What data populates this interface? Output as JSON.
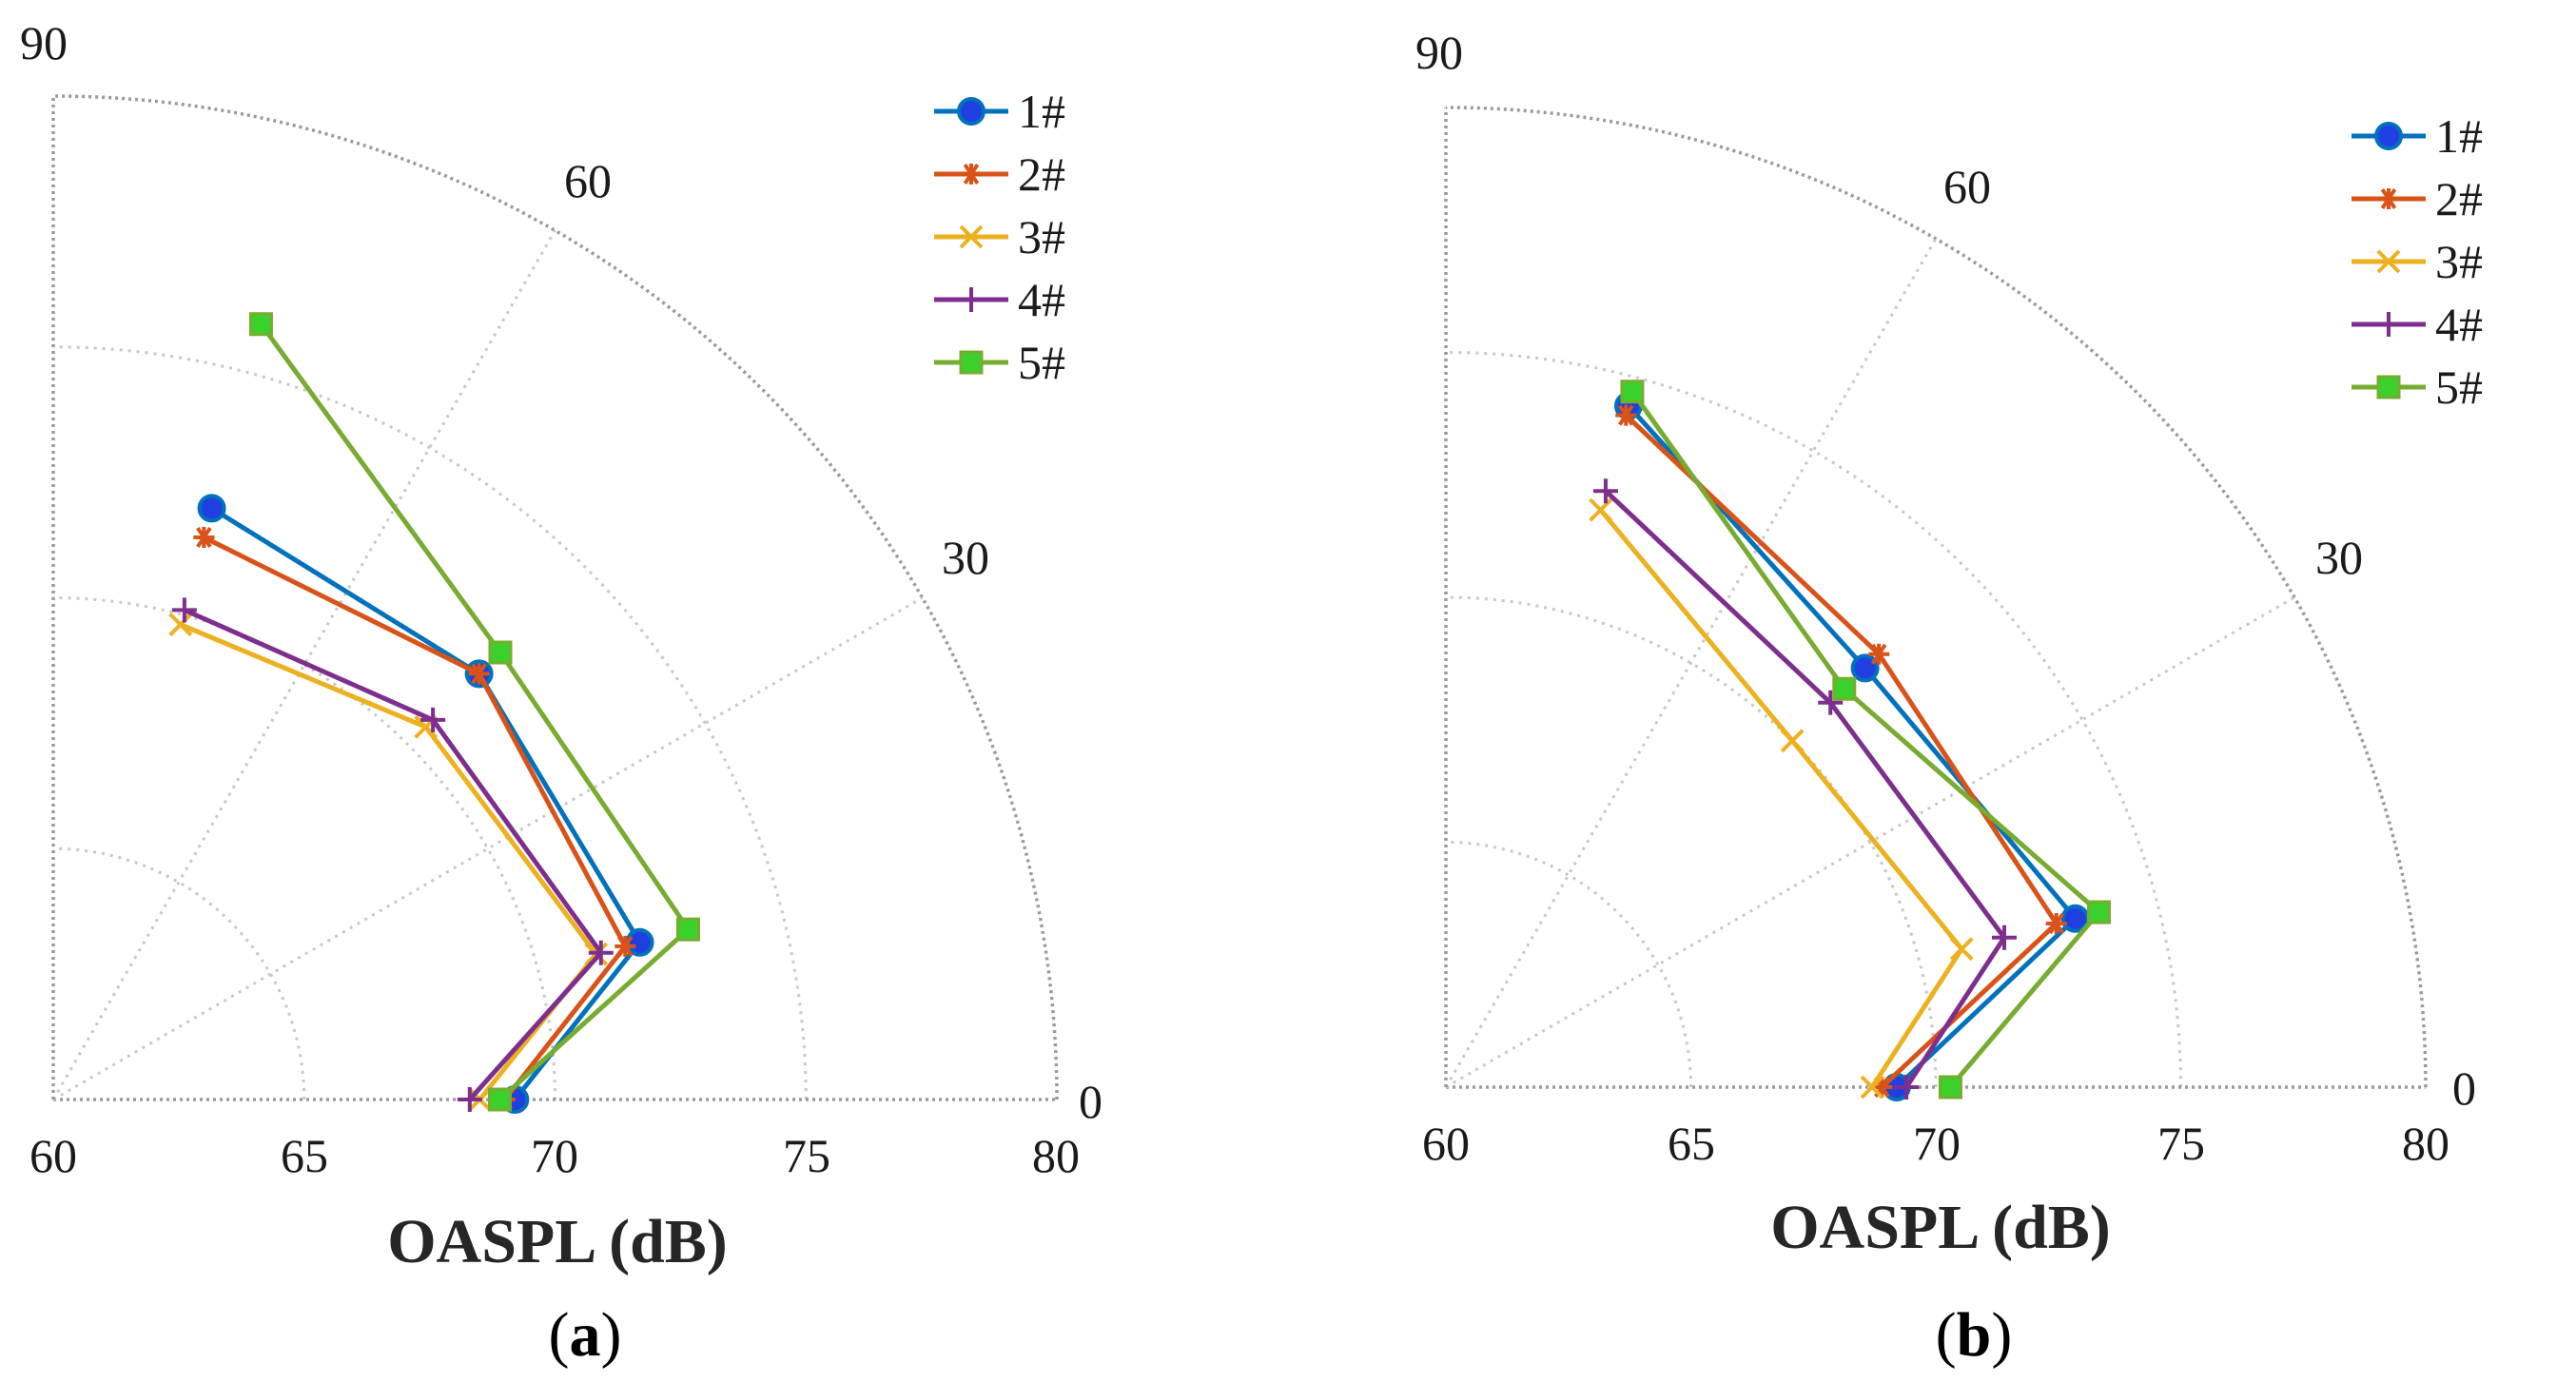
{
  "chart_data": [
    {
      "type": "polar-line",
      "panel_label": "a",
      "xlabel": "OASPL (dB)",
      "radial_range": [
        60,
        80
      ],
      "radial_ticks": [
        60,
        65,
        70,
        75,
        80
      ],
      "radial_tick_labels": [
        "60",
        "65",
        "70",
        "75",
        "80"
      ],
      "angular_range_deg": [
        0,
        90
      ],
      "angular_ticks": [
        0,
        30,
        60,
        90
      ],
      "angular_tick_labels": [
        "0",
        "30",
        "60",
        "90"
      ],
      "grid": true,
      "legend_position": "top-right",
      "series": [
        {
          "name": "1#",
          "color": "#0072BD",
          "marker": "circle",
          "points": [
            [
              0,
              69.2
            ],
            [
              15,
              72.1
            ],
            [
              45,
              72.0
            ],
            [
              75,
              72.2
            ]
          ]
        },
        {
          "name": "2#",
          "color": "#D95319",
          "marker": "asterisk",
          "points": [
            [
              0,
              69.0
            ],
            [
              15,
              71.8
            ],
            [
              45,
              72.0
            ],
            [
              75,
              71.6
            ]
          ]
        },
        {
          "name": "3#",
          "color": "#EDB120",
          "marker": "x",
          "points": [
            [
              0,
              68.5
            ],
            [
              15,
              71.2
            ],
            [
              45,
              70.5
            ],
            [
              75,
              69.8
            ]
          ]
        },
        {
          "name": "4#",
          "color": "#7E2F8E",
          "marker": "plus",
          "points": [
            [
              0,
              68.3
            ],
            [
              15,
              71.3
            ],
            [
              45,
              70.7
            ],
            [
              75,
              70.1
            ]
          ]
        },
        {
          "name": "5#",
          "color": "#77AC30",
          "marker": "square",
          "points": [
            [
              0,
              68.9
            ],
            [
              15,
              73.1
            ],
            [
              45,
              72.6
            ],
            [
              75,
              76.0
            ]
          ]
        }
      ]
    },
    {
      "type": "polar-line",
      "panel_label": "b",
      "xlabel": "OASPL (dB)",
      "radial_range": [
        60,
        80
      ],
      "radial_ticks": [
        60,
        65,
        70,
        75,
        80
      ],
      "radial_tick_labels": [
        "60",
        "65",
        "70",
        "75",
        "80"
      ],
      "angular_range_deg": [
        0,
        90
      ],
      "angular_ticks": [
        0,
        30,
        60,
        90
      ],
      "angular_tick_labels": [
        "0",
        "30",
        "60",
        "90"
      ],
      "grid": true,
      "legend_position": "top-right",
      "series": [
        {
          "name": "1#",
          "color": "#0072BD",
          "marker": "circle",
          "points": [
            [
              0,
              69.2
            ],
            [
              15,
              73.3
            ],
            [
              45,
              72.1
            ],
            [
              75,
              74.4
            ]
          ]
        },
        {
          "name": "2#",
          "color": "#D95319",
          "marker": "asterisk",
          "points": [
            [
              0,
              68.9
            ],
            [
              15,
              72.9
            ],
            [
              45,
              72.5
            ],
            [
              75,
              74.2
            ]
          ]
        },
        {
          "name": "3#",
          "color": "#EDB120",
          "marker": "x",
          "points": [
            [
              0,
              68.7
            ],
            [
              15,
              70.9
            ],
            [
              45,
              70.0
            ],
            [
              75,
              72.2
            ]
          ]
        },
        {
          "name": "4#",
          "color": "#7E2F8E",
          "marker": "plus",
          "points": [
            [
              0,
              69.4
            ],
            [
              15,
              71.8
            ],
            [
              45,
              71.1
            ],
            [
              75,
              72.6
            ]
          ]
        },
        {
          "name": "5#",
          "color": "#77AC30",
          "marker": "square",
          "points": [
            [
              0,
              70.3
            ],
            [
              15,
              73.8
            ],
            [
              45,
              71.5
            ],
            [
              75,
              74.7
            ]
          ]
        }
      ]
    }
  ]
}
